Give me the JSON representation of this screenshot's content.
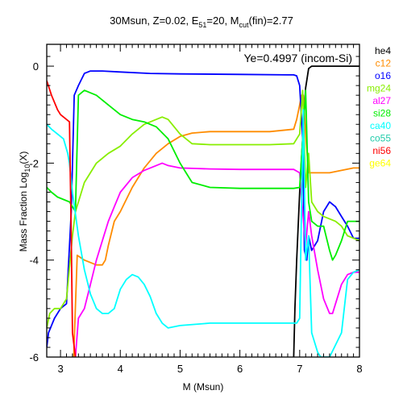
{
  "chart_data": {
    "type": "line",
    "title_parts": {
      "prefix": "30Msun, Z=0.02, E",
      "e_sub": "51",
      "mid": "=20, M",
      "m_sub": "cut",
      "suffix": "(fin)=2.77"
    },
    "annotation": "Ye=0.4997 (incom-Si)",
    "xlabel": "M (Msun)",
    "ylabel_parts": {
      "prefix": "Mass Fraction Log",
      "sub": "10",
      "suffix": "(X)"
    },
    "xlim": [
      2.77,
      8.0
    ],
    "ylim": [
      -6,
      0.45
    ],
    "xticks": [
      "3",
      "4",
      "5",
      "6",
      "7",
      "8"
    ],
    "yticks": [
      "0",
      "-2",
      "-4",
      "-6"
    ],
    "legend_position": "right",
    "series": [
      {
        "name": "he4",
        "color": "#000000",
        "x": [
          6.9,
          6.92,
          6.95,
          7.0,
          7.05,
          7.1,
          7.15,
          7.2,
          8.0
        ],
        "y": [
          -6.0,
          -5.0,
          -4.0,
          -2.6,
          -1.5,
          -0.45,
          -0.05,
          0.0,
          0.0
        ]
      },
      {
        "name": "c12",
        "color": "#ff8c00",
        "x": [
          3.22,
          3.28,
          3.4,
          3.6,
          3.7,
          3.75,
          3.8,
          3.9,
          4.0,
          4.2,
          4.4,
          4.6,
          4.8,
          5.0,
          5.2,
          5.5,
          6.0,
          6.5,
          6.9,
          6.95,
          7.0,
          7.03,
          7.06,
          7.1,
          7.15,
          7.3,
          7.5,
          7.7,
          7.9,
          8.0
        ],
        "y": [
          -6.0,
          -3.9,
          -4.0,
          -4.1,
          -4.1,
          -4.0,
          -3.7,
          -3.2,
          -3.0,
          -2.5,
          -2.1,
          -1.8,
          -1.6,
          -1.45,
          -1.38,
          -1.35,
          -1.35,
          -1.35,
          -1.3,
          -1.1,
          -0.8,
          -0.6,
          -0.6,
          -1.4,
          -2.2,
          -2.2,
          -2.2,
          -2.15,
          -2.1,
          -2.1
        ]
      },
      {
        "name": "o16",
        "color": "#0000ff",
        "x": [
          2.77,
          2.8,
          2.9,
          3.0,
          3.1,
          3.18,
          3.23,
          3.3,
          3.4,
          3.5,
          3.7,
          4.0,
          4.5,
          5.0,
          6.0,
          6.8,
          6.9,
          6.95,
          7.0,
          7.05,
          7.08,
          7.12,
          7.15,
          7.2,
          7.3,
          7.4,
          7.5,
          7.6,
          7.7,
          7.8,
          7.9,
          8.0
        ],
        "y": [
          -5.8,
          -5.5,
          -5.2,
          -5.0,
          -4.9,
          -3.0,
          -0.6,
          -0.4,
          -0.15,
          -0.1,
          -0.1,
          -0.12,
          -0.15,
          -0.16,
          -0.17,
          -0.18,
          -0.18,
          -0.2,
          -0.4,
          -1.5,
          -3.8,
          -4.0,
          -3.5,
          -3.8,
          -3.6,
          -3.0,
          -2.8,
          -2.9,
          -3.1,
          -3.3,
          -3.55,
          -3.55
        ]
      },
      {
        "name": "mg24",
        "color": "#88ee00",
        "x": [
          2.77,
          2.82,
          2.9,
          3.0,
          3.1,
          3.2,
          3.25,
          3.3,
          3.4,
          3.6,
          3.8,
          4.0,
          4.2,
          4.4,
          4.6,
          4.7,
          4.8,
          5.0,
          5.2,
          5.5,
          6.0,
          6.5,
          6.9,
          7.0,
          7.05,
          7.1,
          7.15,
          7.2,
          7.3,
          7.4,
          7.5,
          7.6,
          7.7,
          7.8,
          8.0
        ],
        "y": [
          -5.4,
          -5.1,
          -5.0,
          -5.0,
          -4.8,
          -3.5,
          -3.0,
          -2.8,
          -2.4,
          -2.0,
          -1.8,
          -1.65,
          -1.4,
          -1.2,
          -1.1,
          -1.05,
          -1.1,
          -1.4,
          -1.6,
          -1.62,
          -1.62,
          -1.62,
          -1.6,
          -1.4,
          -0.5,
          -2.5,
          -1.8,
          -2.8,
          -3.0,
          -3.1,
          -3.15,
          -3.2,
          -3.3,
          -3.5,
          -3.6
        ]
      },
      {
        "name": "al27",
        "color": "#ff00ff",
        "x": [
          3.25,
          3.3,
          3.4,
          3.5,
          3.6,
          3.7,
          3.8,
          3.9,
          4.0,
          4.2,
          4.4,
          4.6,
          4.7,
          4.8,
          5.0,
          5.5,
          6.0,
          6.5,
          6.9,
          7.0,
          7.05,
          7.1,
          7.15,
          7.2,
          7.3,
          7.4,
          7.5,
          7.55,
          7.6,
          7.7,
          7.8,
          7.9,
          8.0
        ],
        "y": [
          -6.0,
          -5.2,
          -5.0,
          -4.5,
          -4.0,
          -3.6,
          -3.2,
          -2.9,
          -2.6,
          -2.3,
          -2.15,
          -2.05,
          -2.0,
          -2.05,
          -2.1,
          -2.12,
          -2.13,
          -2.13,
          -2.13,
          -2.2,
          -3.0,
          -3.7,
          -3.0,
          -3.5,
          -4.2,
          -4.8,
          -5.1,
          -5.1,
          -4.9,
          -4.5,
          -4.3,
          -4.25,
          -4.25
        ]
      },
      {
        "name": "si28",
        "color": "#00ee00",
        "x": [
          2.77,
          2.85,
          2.95,
          3.05,
          3.15,
          3.25,
          3.3,
          3.4,
          3.6,
          3.8,
          4.0,
          4.2,
          4.4,
          4.6,
          4.8,
          5.0,
          5.2,
          5.5,
          6.0,
          6.5,
          6.9,
          7.0,
          7.05,
          7.1,
          7.15,
          7.2,
          7.3,
          7.4,
          7.5,
          7.55,
          7.6,
          7.7,
          7.8,
          7.9,
          8.0
        ],
        "y": [
          -2.5,
          -2.6,
          -2.7,
          -2.75,
          -2.8,
          -3.0,
          -0.6,
          -0.5,
          -0.6,
          -0.8,
          -1.0,
          -1.1,
          -1.15,
          -1.25,
          -1.5,
          -2.0,
          -2.4,
          -2.5,
          -2.52,
          -2.52,
          -2.52,
          -2.5,
          -1.5,
          -0.5,
          -2.8,
          -3.2,
          -3.3,
          -3.3,
          -3.8,
          -4.0,
          -3.9,
          -3.6,
          -3.2,
          -3.2,
          -3.2
        ]
      },
      {
        "name": "ca40",
        "color": "#00ffff",
        "x": [
          2.77,
          2.85,
          2.95,
          3.05,
          3.12,
          3.15,
          3.2,
          3.3,
          3.4,
          3.5,
          3.6,
          3.7,
          3.8,
          3.9,
          4.0,
          4.1,
          4.2,
          4.3,
          4.4,
          4.5,
          4.6,
          4.7,
          4.8,
          5.0,
          5.5,
          6.0,
          6.5,
          6.95,
          7.0,
          7.03,
          7.06,
          7.1,
          7.15,
          7.2,
          7.3,
          7.35,
          7.5,
          7.7,
          7.8,
          7.9,
          8.0
        ],
        "y": [
          -1.2,
          -1.3,
          -1.4,
          -1.5,
          -1.8,
          -2.0,
          -2.6,
          -3.5,
          -4.2,
          -4.7,
          -5.0,
          -5.1,
          -5.1,
          -5.0,
          -4.6,
          -4.4,
          -4.3,
          -4.35,
          -4.5,
          -4.75,
          -5.1,
          -5.3,
          -5.4,
          -5.35,
          -5.3,
          -5.3,
          -5.3,
          -5.3,
          -5.2,
          -3.0,
          -0.9,
          -4.0,
          -3.5,
          -5.5,
          -5.9,
          -6.0,
          -6.0,
          -5.5,
          -4.4,
          -4.25,
          -4.2
        ]
      },
      {
        "name": "co55",
        "color": "#22ccaa",
        "x": [],
        "y": []
      },
      {
        "name": "ni56",
        "color": "#ff0000",
        "x": [
          2.77,
          2.85,
          2.95,
          3.0,
          3.05,
          3.1,
          3.15,
          3.18,
          3.2,
          3.25
        ],
        "y": [
          -0.3,
          -0.6,
          -0.9,
          -1.0,
          -1.05,
          -1.1,
          -1.15,
          -3.5,
          -5.5,
          -6.0
        ]
      },
      {
        "name": "ge64",
        "color": "#ffff00",
        "x": [],
        "y": []
      }
    ]
  }
}
